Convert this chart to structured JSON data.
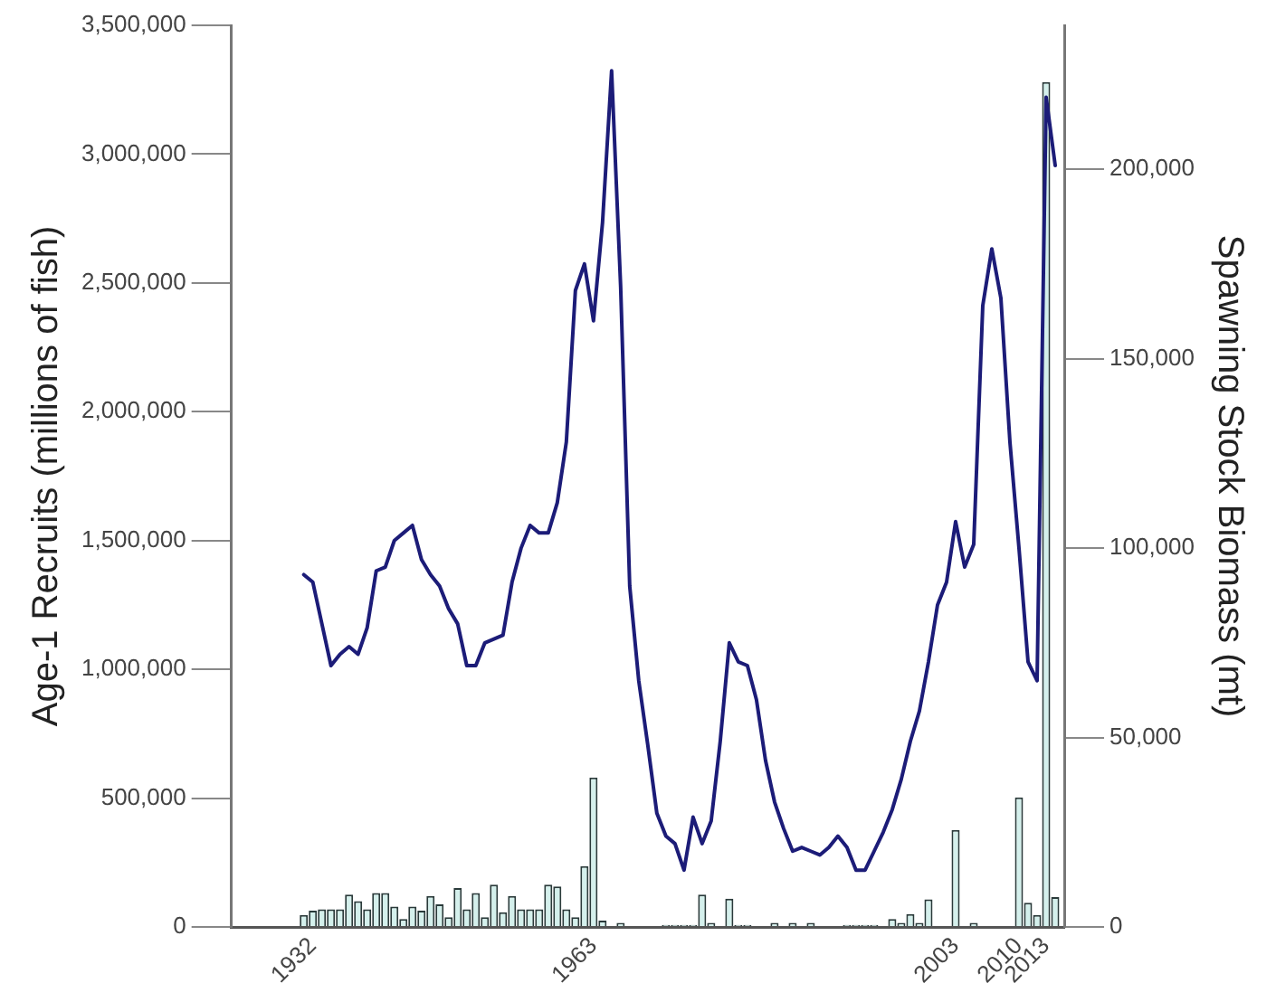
{
  "chart_data": {
    "type": "bar",
    "ylabel": "Age-1 Recruits (millions of fish)",
    "y2label": "Spawning Stock Biomass (mt)",
    "xlim": [
      1923,
      2015
    ],
    "xticks": [
      1932,
      1963,
      2003,
      2010,
      2013
    ],
    "ylim": [
      0,
      3500000
    ],
    "yticks": [
      0,
      {
        "value": 500000,
        "label": "500,000"
      },
      {
        "value": 1000000,
        "label": "1,000,000"
      },
      {
        "value": 1500000,
        "label": "1,500,000"
      },
      {
        "value": 2000000,
        "label": "2,000,000"
      },
      {
        "value": 2500000,
        "label": "2,500,000"
      },
      {
        "value": 3000000,
        "label": "3,000,000"
      },
      {
        "value": 3500000,
        "label": "3,500,000"
      }
    ],
    "y2lim": [
      0,
      238000
    ],
    "y2ticks": [
      0,
      {
        "value": 50000,
        "label": "50,000"
      },
      {
        "value": 100000,
        "label": "100,000"
      },
      {
        "value": 150000,
        "label": "150,000"
      },
      {
        "value": 200000,
        "label": "200,000"
      }
    ],
    "grid": false,
    "legend": false,
    "series": [
      {
        "color": "#d4f0ec",
        "x": [
          1931,
          1932,
          1933,
          1934,
          1935,
          1936,
          1937,
          1938,
          1939,
          1940,
          1941,
          1942,
          1943,
          1944,
          1945,
          1946,
          1947,
          1948,
          1949,
          1950,
          1951,
          1952,
          1953,
          1954,
          1955,
          1956,
          1957,
          1958,
          1959,
          1960,
          1961,
          1962,
          1963,
          1964,
          1966,
          1971,
          1972,
          1973,
          1974,
          1975,
          1976,
          1978,
          1979,
          1980,
          1983,
          1985,
          1987,
          1991,
          1992,
          1993,
          1994,
          1996,
          1997,
          1998,
          1999,
          2000,
          2003,
          2005,
          2010,
          2011,
          2012,
          2013,
          2014
        ],
        "values": [
          47000,
          63000,
          69000,
          69000,
          69000,
          126000,
          100000,
          69000,
          132000,
          132000,
          79000,
          31000,
          79000,
          63000,
          120000,
          88000,
          38000,
          151000,
          69000,
          132000,
          38000,
          164000,
          57000,
          120000,
          69000,
          69000,
          69000,
          164000,
          157000,
          69000,
          38000,
          236000,
          580000,
          25000,
          16000,
          8000,
          8000,
          8000,
          8000,
          126000,
          16000,
          110000,
          8000,
          8000,
          16000,
          16000,
          16000,
          8000,
          8000,
          8000,
          8000,
          31000,
          16000,
          50000,
          16000,
          107000,
          377000,
          16000,
          503000,
          94000,
          47000,
          3280000,
          116000
        ]
      },
      {
        "type": "line",
        "axis": "y2",
        "color": "#1c1c78",
        "marker": "none",
        "line_style": "solid",
        "x": [
          1931,
          1932,
          1933,
          1934,
          1935,
          1936,
          1937,
          1938,
          1939,
          1940,
          1941,
          1942,
          1943,
          1944,
          1945,
          1946,
          1947,
          1948,
          1949,
          1950,
          1951,
          1952,
          1953,
          1954,
          1955,
          1956,
          1957,
          1958,
          1959,
          1960,
          1961,
          1962,
          1963,
          1964,
          1965,
          1966,
          1967,
          1968,
          1969,
          1970,
          1971,
          1972,
          1973,
          1974,
          1975,
          1976,
          1977,
          1978,
          1979,
          1980,
          1981,
          1982,
          1983,
          1984,
          1985,
          1986,
          1987,
          1988,
          1989,
          1990,
          1991,
          1992,
          1993,
          1994,
          1995,
          1996,
          1997,
          1998,
          1999,
          2000,
          2001,
          2002,
          2003,
          2004,
          2005,
          2006,
          2007,
          2008,
          2009,
          2010,
          2011,
          2012,
          2013,
          2014
        ],
        "values": [
          93000,
          91000,
          80000,
          69000,
          72000,
          74000,
          72000,
          79000,
          94000,
          95000,
          102000,
          104000,
          106000,
          97000,
          93000,
          90000,
          84000,
          80000,
          69000,
          69000,
          75000,
          76000,
          77000,
          91000,
          100000,
          106000,
          104000,
          104000,
          112000,
          128000,
          168000,
          175000,
          160000,
          186000,
          226000,
          169000,
          90000,
          65000,
          48000,
          30000,
          24000,
          22000,
          15000,
          29000,
          22000,
          28000,
          49000,
          75000,
          70000,
          69000,
          60000,
          44000,
          33000,
          26000,
          20000,
          21000,
          20000,
          19000,
          21000,
          24000,
          21000,
          15000,
          15000,
          20000,
          25000,
          31000,
          39000,
          49000,
          57000,
          70000,
          85000,
          91000,
          107000,
          95000,
          101000,
          164000,
          179000,
          166000,
          128000,
          100000,
          70000,
          65000,
          219000,
          201000
        ]
      }
    ]
  }
}
